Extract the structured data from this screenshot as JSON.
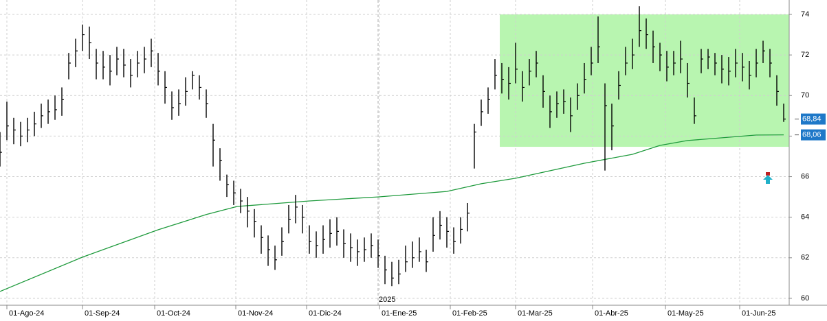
{
  "chart_data": {
    "type": "ohlc",
    "x": [
      0,
      2,
      4,
      6,
      8,
      10,
      12,
      14,
      16,
      18,
      20,
      22,
      24,
      26,
      28,
      30,
      32,
      34,
      36,
      38,
      40,
      42,
      44,
      46,
      48,
      50,
      52,
      54,
      56,
      58,
      60,
      62,
      64,
      66,
      68,
      70,
      72,
      74,
      76,
      78,
      80,
      82,
      84,
      86,
      88,
      90,
      92,
      94,
      96,
      98,
      100,
      102,
      104,
      106,
      108,
      110,
      112,
      114,
      116,
      118,
      120,
      122,
      124,
      126,
      128,
      130,
      132,
      134,
      136,
      138,
      140,
      142,
      144,
      146,
      148,
      150,
      152,
      154,
      156,
      158,
      160,
      162,
      164,
      166,
      168,
      170,
      172,
      174,
      176,
      178,
      180,
      182,
      184,
      186,
      188,
      190,
      192,
      194,
      196,
      198,
      200,
      202,
      204,
      206,
      208,
      210,
      212,
      214,
      216,
      218,
      220,
      222,
      224,
      226,
      228
    ],
    "high": [
      68.2,
      69.7,
      68.9,
      68.7,
      68.9,
      69.2,
      69.6,
      69.8,
      70.0,
      70.4,
      72.1,
      72.8,
      73.5,
      73.4,
      72.3,
      72.2,
      72.0,
      72.4,
      72.3,
      71.8,
      72.2,
      72.4,
      72.8,
      72.1,
      71.2,
      70.2,
      70.3,
      70.9,
      71.2,
      71.0,
      70.3,
      68.6,
      67.4,
      66.1,
      65.8,
      65.4,
      65.0,
      64.4,
      63.6,
      63.1,
      62.6,
      63.5,
      64.6,
      65.1,
      64.6,
      63.6,
      63.3,
      63.6,
      63.9,
      64.0,
      63.4,
      63.2,
      62.9,
      63.0,
      63.2,
      62.9,
      62.1,
      61.8,
      61.9,
      62.6,
      62.8,
      63.0,
      62.4,
      64.0,
      64.3,
      64.0,
      63.5,
      64.0,
      64.7,
      68.6,
      69.8,
      70.4,
      71.8,
      71.6,
      71.4,
      72.6,
      71.2,
      71.8,
      72.2,
      71.0,
      70.0,
      70.2,
      70.3,
      69.9,
      70.6,
      71.6,
      72.4,
      73.9,
      70.6,
      69.6,
      71.2,
      72.4,
      72.8,
      74.4,
      73.8,
      73.2,
      72.6,
      72.2,
      72.2,
      72.7,
      71.6,
      69.9,
      72.3,
      72.3,
      72.1,
      72.0,
      71.9,
      72.3,
      72.1,
      71.7,
      72.3,
      72.7,
      72.3,
      71.0,
      69.6
    ],
    "low": [
      66.5,
      67.8,
      67.6,
      67.5,
      67.7,
      68.0,
      68.4,
      68.6,
      68.8,
      69.0,
      70.8,
      71.4,
      72.2,
      71.8,
      70.8,
      70.8,
      70.5,
      71.0,
      70.9,
      70.4,
      70.9,
      71.1,
      71.4,
      70.5,
      69.6,
      68.8,
      69.0,
      69.5,
      70.3,
      69.8,
      68.9,
      66.5,
      65.8,
      65.0,
      64.6,
      64.2,
      63.5,
      63.0,
      62.2,
      61.6,
      61.4,
      62.1,
      63.2,
      63.7,
      63.2,
      62.2,
      62.0,
      62.2,
      62.5,
      62.6,
      62.0,
      61.8,
      61.6,
      61.8,
      62.0,
      61.5,
      60.7,
      60.6,
      60.7,
      61.3,
      61.5,
      61.8,
      61.3,
      62.3,
      62.9,
      62.5,
      62.2,
      62.7,
      63.3,
      66.4,
      68.5,
      69.1,
      70.3,
      70.1,
      69.8,
      70.6,
      69.7,
      70.5,
      70.9,
      69.4,
      68.4,
      68.9,
      69.1,
      68.2,
      69.3,
      70.1,
      71.0,
      71.6,
      66.3,
      67.3,
      69.8,
      71.0,
      71.3,
      72.4,
      72.3,
      71.6,
      71.2,
      70.7,
      71.0,
      71.1,
      69.9,
      68.6,
      71.1,
      71.3,
      71.0,
      70.6,
      70.5,
      70.9,
      70.7,
      70.3,
      70.9,
      71.6,
      70.9,
      69.5,
      68.7
    ],
    "close": [
      67.2,
      68.5,
      68.3,
      68.0,
      68.3,
      68.6,
      69.0,
      69.2,
      69.3,
      69.8,
      71.6,
      72.2,
      73.0,
      72.6,
      71.6,
      71.4,
      71.2,
      71.8,
      71.5,
      71.0,
      71.6,
      71.8,
      72.2,
      71.2,
      70.4,
      69.4,
      69.6,
      70.2,
      71.0,
      70.4,
      69.6,
      67.8,
      66.8,
      65.6,
      65.2,
      64.8,
      64.3,
      63.8,
      63.0,
      62.4,
      61.9,
      62.8,
      63.9,
      64.5,
      64.0,
      62.8,
      62.6,
      62.9,
      63.2,
      63.3,
      62.7,
      62.5,
      62.3,
      62.4,
      62.6,
      62.1,
      61.4,
      61.0,
      61.2,
      61.8,
      62.0,
      62.3,
      61.8,
      63.1,
      63.6,
      63.3,
      62.8,
      63.4,
      64.2,
      68.2,
      69.2,
      69.8,
      71.0,
      70.8,
      70.6,
      71.3,
      70.4,
      71.2,
      71.6,
      70.2,
      69.2,
      69.6,
      69.7,
      69.0,
      70.0,
      70.8,
      71.6,
      72.4,
      69.5,
      68.5,
      70.5,
      71.6,
      72.0,
      73.2,
      73.0,
      72.4,
      72.0,
      71.4,
      71.6,
      71.8,
      70.6,
      69.0,
      71.8,
      71.9,
      71.6,
      71.3,
      71.2,
      71.6,
      71.4,
      71.0,
      71.6,
      72.2,
      71.6,
      70.2,
      68.84
    ],
    "color": "#000000",
    "moving_average": {
      "color": "#1e9a3c",
      "x": [
        0,
        24,
        46,
        60,
        69,
        90,
        110,
        130,
        140,
        150,
        170,
        184,
        192,
        200,
        220,
        228
      ],
      "values": [
        60.34,
        62.03,
        63.38,
        64.13,
        64.53,
        64.8,
        65.0,
        65.27,
        65.65,
        65.92,
        66.66,
        67.1,
        67.54,
        67.78,
        68.05,
        68.06
      ]
    },
    "zone": {
      "x": [
        145.4,
        229.6
      ],
      "y": [
        67.47,
        74
      ],
      "color": "#b8f5b0"
    },
    "price_labels": {
      "values": [
        68.84,
        68.06
      ],
      "value_labels": [
        "68,84",
        "68,06"
      ],
      "color": "#1e78c8"
    },
    "year_marker": {
      "x": 110,
      "label": "2025"
    },
    "xlim": [
      0,
      229.6
    ],
    "ylim": [
      59.66,
      74.71
    ],
    "xticks": [
      {
        "value": 2,
        "label": "01-Ago-24"
      },
      {
        "value": 24,
        "label": "01-Sep-24"
      },
      {
        "value": 45,
        "label": "01-Oct-24"
      },
      {
        "value": 68.6,
        "label": "01-Nov-24"
      },
      {
        "value": 89.2,
        "label": "01-Dic-24"
      },
      {
        "value": 110.4,
        "label": "01-Ene-25"
      },
      {
        "value": 131,
        "label": "01-Feb-25"
      },
      {
        "value": 150,
        "label": "01-Mar-25"
      },
      {
        "value": 172.4,
        "label": "01-Abr-25"
      },
      {
        "value": 193.6,
        "label": "01-May-25"
      },
      {
        "value": 215.2,
        "label": "01-Jun-25"
      }
    ],
    "yticks": [
      60,
      62,
      64,
      66,
      68,
      70,
      72,
      74
    ],
    "grid": true
  }
}
